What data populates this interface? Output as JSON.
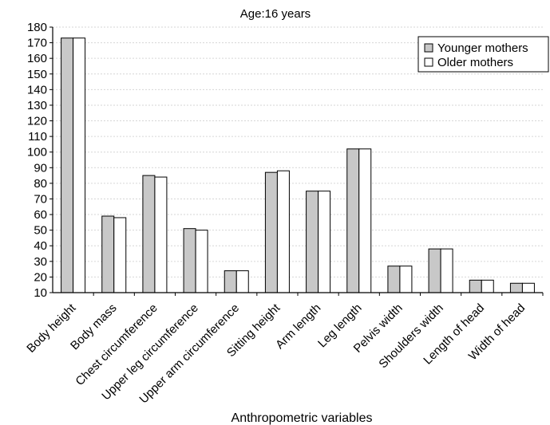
{
  "chart_data": {
    "type": "bar",
    "title": "Age:16 years",
    "xlabel": "Anthropometric variables",
    "ylabel": "",
    "ylim": [
      10,
      180
    ],
    "ytick_step": 10,
    "grid": true,
    "legend_position": "top-right",
    "categories": [
      "Body height",
      "Body mass",
      "Chest circumference",
      "Upper leg circumference",
      "Upper arm circumference",
      "Sitting height",
      "Arm length",
      "Leg length",
      "Pelvis width",
      "Shoulders width",
      "Length of head",
      "Width of head"
    ],
    "series": [
      {
        "name": "Younger mothers",
        "color": "#c8c8c8",
        "values": [
          173,
          59,
          85,
          51,
          24,
          87,
          75,
          102,
          27,
          38,
          18,
          16
        ]
      },
      {
        "name": "Older mothers",
        "color": "#ffffff",
        "values": [
          173,
          58,
          84,
          50,
          24,
          88,
          75,
          102,
          27,
          38,
          18,
          16
        ]
      }
    ]
  }
}
